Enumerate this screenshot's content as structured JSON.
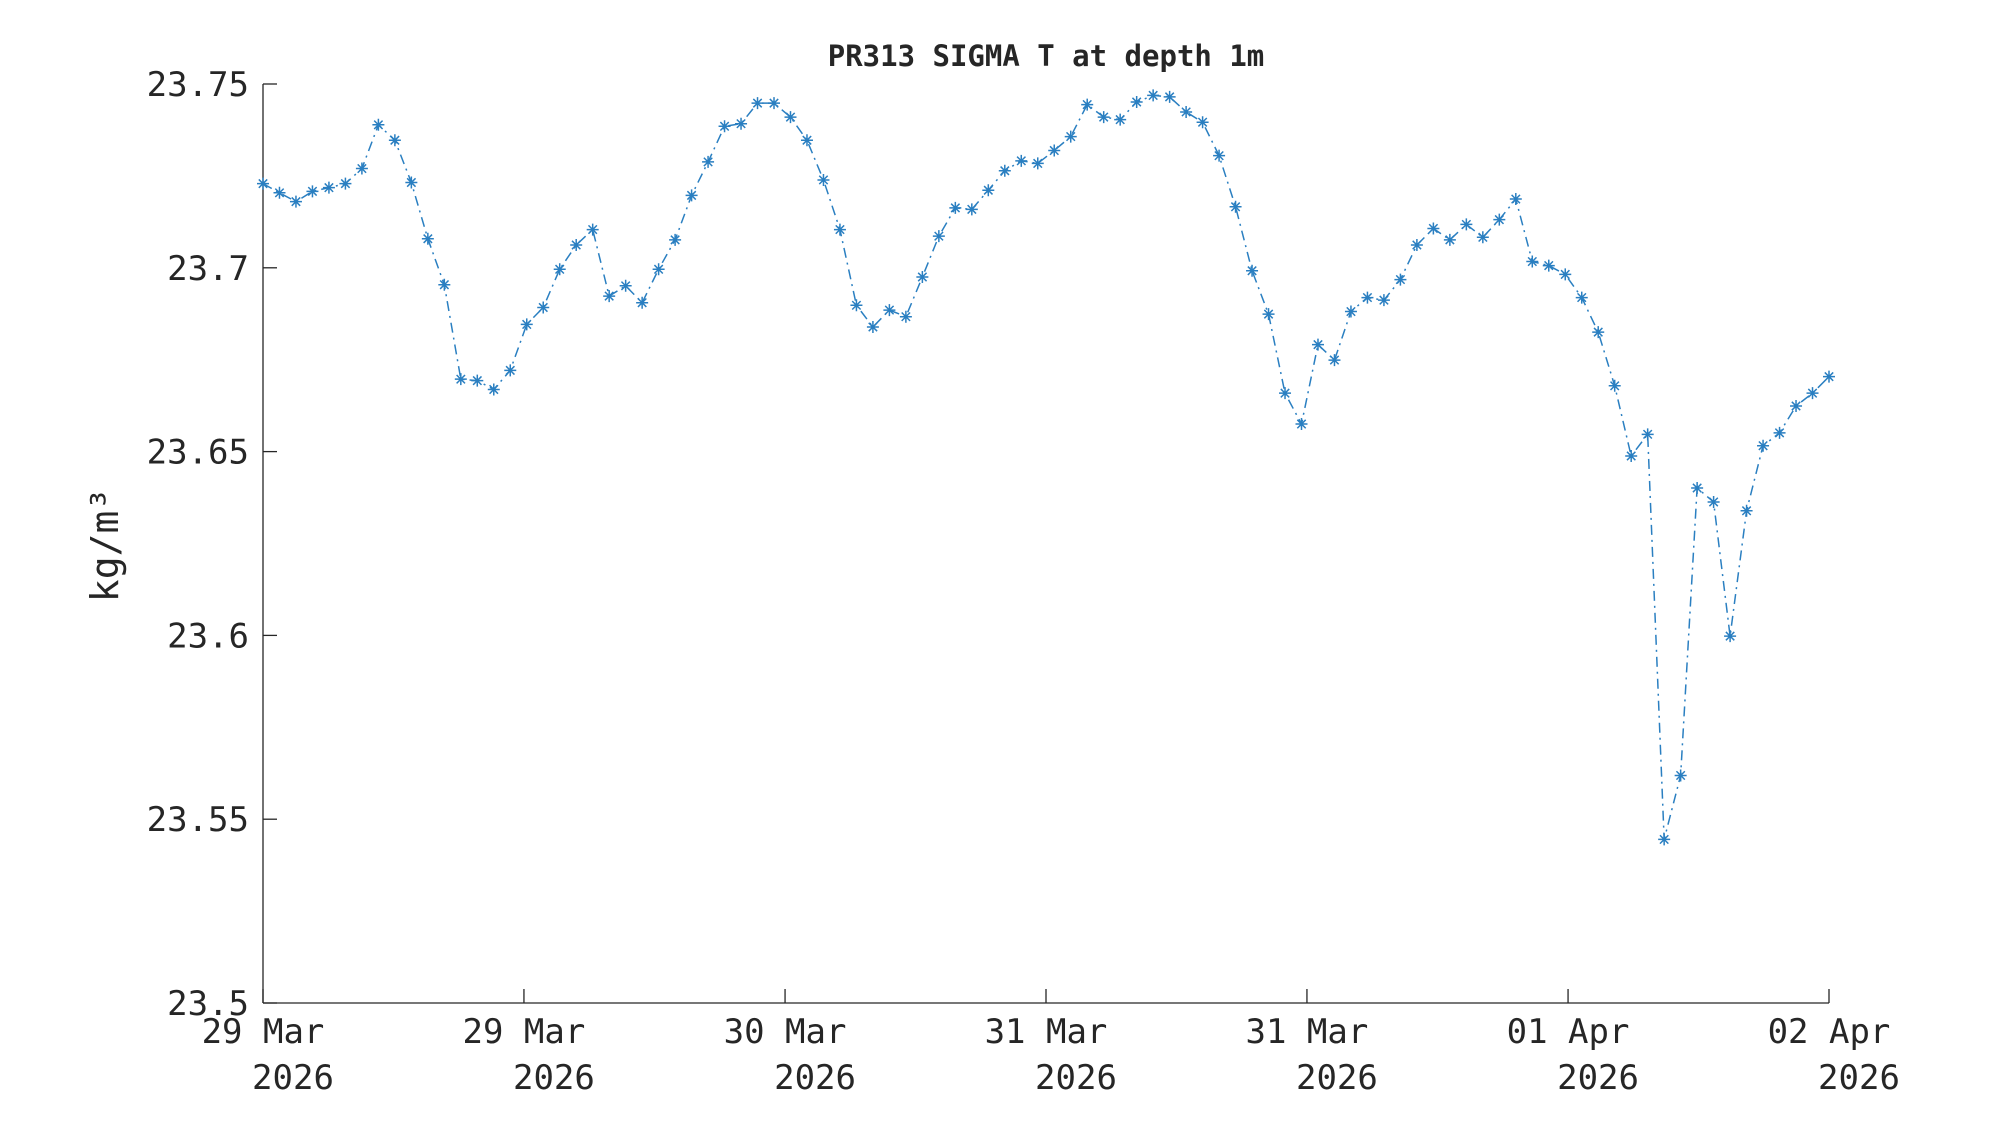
{
  "chart_data": {
    "type": "line",
    "title": "PR313 SIGMA T at depth 1m",
    "ylabel": "kg/m³",
    "color": "#2a7fc1",
    "values": [
      23.7229,
      23.7204,
      23.718,
      23.7208,
      23.7218,
      23.7229,
      23.727,
      23.7389,
      23.7347,
      23.7232,
      23.7079,
      23.6954,
      23.6697,
      23.6693,
      23.6669,
      23.6721,
      23.6846,
      23.6892,
      23.6996,
      23.7062,
      23.7104,
      23.6923,
      23.6951,
      23.6905,
      23.6996,
      23.7076,
      23.7197,
      23.7288,
      23.7385,
      23.7392,
      23.7448,
      23.7448,
      23.741,
      23.7347,
      23.7239,
      23.7104,
      23.6898,
      23.6839,
      23.6885,
      23.6867,
      23.6975,
      23.7086,
      23.7163,
      23.7159,
      23.7211,
      23.7264,
      23.7291,
      23.7284,
      23.7319,
      23.7357,
      23.7444,
      23.741,
      23.7403,
      23.7451,
      23.7469,
      23.7465,
      23.7424,
      23.7396,
      23.7305,
      23.7166,
      23.6992,
      23.6874,
      23.6659,
      23.6575,
      23.6791,
      23.6749,
      23.6881,
      23.6919,
      23.6912,
      23.6968,
      23.7062,
      23.7107,
      23.7076,
      23.7118,
      23.7083,
      23.7131,
      23.7187,
      23.7017,
      23.7006,
      23.6982,
      23.6919,
      23.6825,
      23.6679,
      23.6488,
      23.6547,
      23.5445,
      23.5619,
      23.6401,
      23.6363,
      23.5998,
      23.6339,
      23.6516,
      23.6551,
      23.6624,
      23.6659,
      23.6704
    ],
    "xlim": [
      0,
      95
    ],
    "xticks": [
      {
        "value": 0,
        "label": [
          "29 Mar",
          "2026"
        ]
      },
      {
        "value": 15.83,
        "label": [
          "29 Mar",
          "2026"
        ]
      },
      {
        "value": 31.67,
        "label": [
          "30 Mar",
          "2026"
        ]
      },
      {
        "value": 47.5,
        "label": [
          "31 Mar",
          "2026"
        ]
      },
      {
        "value": 63.33,
        "label": [
          "31 Mar",
          "2026"
        ]
      },
      {
        "value": 79.17,
        "label": [
          "01 Apr",
          "2026"
        ]
      },
      {
        "value": 95,
        "label": [
          "02 Apr",
          "2026"
        ]
      }
    ],
    "ylim": [
      23.5,
      23.75
    ],
    "yticks": [
      23.5,
      23.55,
      23.6,
      23.65,
      23.7,
      23.75
    ]
  }
}
